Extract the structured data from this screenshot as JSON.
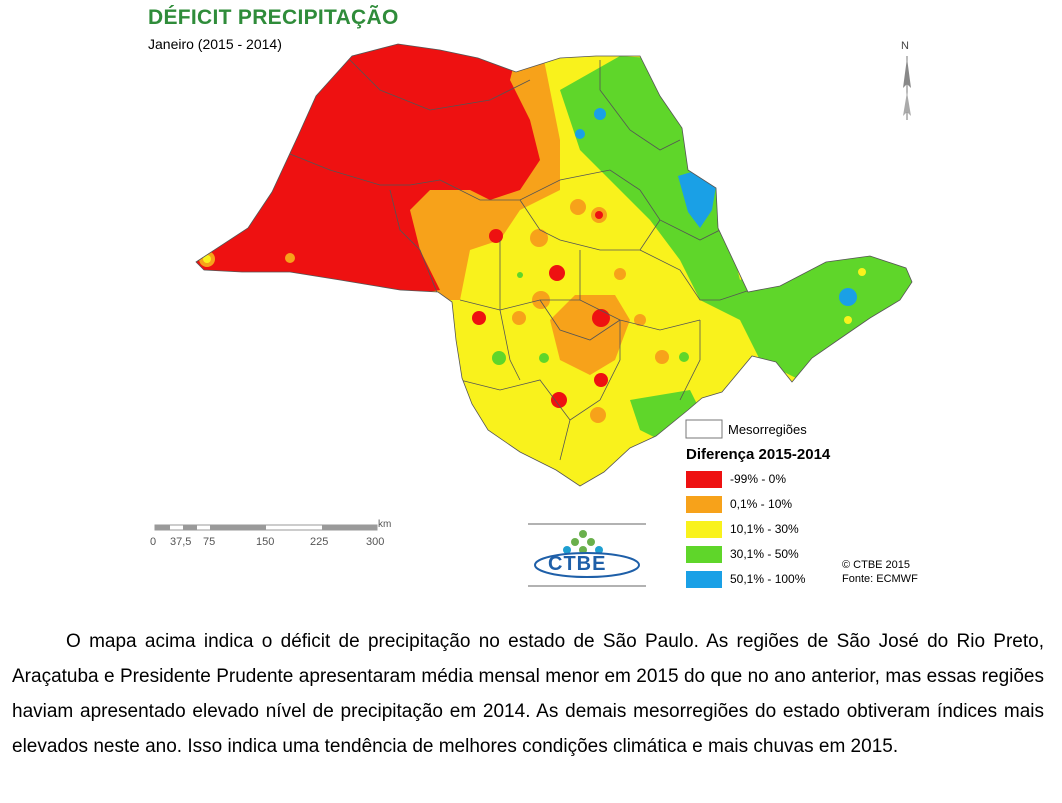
{
  "title": "DÉFICIT PRECIPITAÇÃO",
  "subtitle": "Janeiro (2015 - 2014)",
  "north_label": "N",
  "legend": {
    "boundary_label": "Mesorregiões",
    "title": "Diferença 2015-2014",
    "classes": [
      {
        "label": "-99% - 0%",
        "color": "#ee1111"
      },
      {
        "label": "0,1% - 10%",
        "color": "#f7a21a"
      },
      {
        "label": "10,1% - 30%",
        "color": "#f9f21c"
      },
      {
        "label": "30,1% - 50%",
        "color": "#5fd62a"
      },
      {
        "label": "50,1% - 100%",
        "color": "#1aa0e6"
      }
    ]
  },
  "scale_bar": {
    "unit": "km",
    "ticks": [
      "0",
      "37,5",
      "75",
      "150",
      "225",
      "300"
    ]
  },
  "credit": {
    "line1": "© CTBE 2015",
    "line2": "Fonte: ECMWF"
  },
  "logo": {
    "text": "CTBE"
  },
  "paragraph": "O mapa acima indica o déficit  de precipitação no estado de São Paulo.  As regiões de São José do Rio Preto, Araçatuba e Presidente Prudente apresentaram média mensal menor em 2015 do que  no ano anterior, mas essas regiões haviam apresentado elevado nível de precipitação em 2014. As demais mesorregiões do estado obtiveram índices mais elevados neste ano. Isso indica uma tendência de melhores condições climática e mais chuvas em 2015."
}
